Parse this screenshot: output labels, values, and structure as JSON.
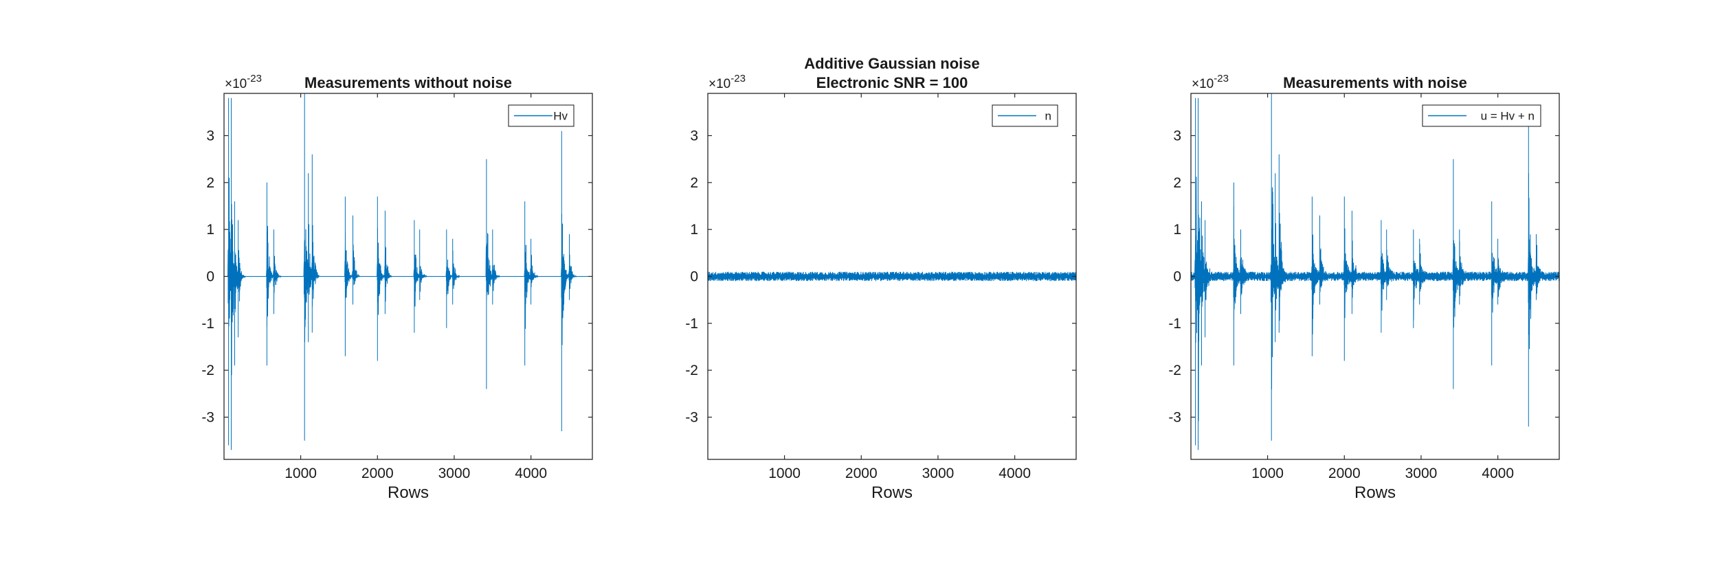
{
  "figure": {
    "background": "#ffffff",
    "series_color": "#0072BD",
    "axes_color": "#262626",
    "exponent_base": "×10",
    "exponent_power": "-23"
  },
  "chart_data": [
    {
      "type": "line",
      "title": "Measurements without noise",
      "xlabel": "Rows",
      "ylabel": "",
      "xlim": [
        1,
        4800
      ],
      "ylim": [
        -3.9,
        3.9
      ],
      "xticks": [
        1000,
        2000,
        3000,
        4000
      ],
      "xtick_labels": [
        "1000",
        "2000",
        "3000",
        "4000"
      ],
      "yticks": [
        -3,
        -2,
        -1,
        0,
        1,
        2,
        3
      ],
      "ytick_labels": [
        "-3",
        "-2",
        "-1",
        "0",
        "1",
        "2",
        "3"
      ],
      "y_scale_exponent": -23,
      "grid": false,
      "legend_position": "top-right",
      "noise_floor": 0,
      "bursts": [
        {
          "x": 60,
          "up": 3.8,
          "down": -3.6
        },
        {
          "x": 95,
          "up": 3.8,
          "down": -3.7
        },
        {
          "x": 140,
          "up": 1.6,
          "down": -1.9
        },
        {
          "x": 185,
          "up": 1.2,
          "down": -1.3
        },
        {
          "x": 560,
          "up": 2.0,
          "down": -1.9
        },
        {
          "x": 650,
          "up": 1.0,
          "down": -0.8
        },
        {
          "x": 1050,
          "up": 3.9,
          "down": -3.5
        },
        {
          "x": 1100,
          "up": 2.2,
          "down": -1.4
        },
        {
          "x": 1150,
          "up": 2.6,
          "down": -1.2
        },
        {
          "x": 1580,
          "up": 1.7,
          "down": -1.7
        },
        {
          "x": 1680,
          "up": 1.3,
          "down": -0.6
        },
        {
          "x": 2000,
          "up": 1.7,
          "down": -1.8
        },
        {
          "x": 2100,
          "up": 1.4,
          "down": -0.8
        },
        {
          "x": 2480,
          "up": 1.2,
          "down": -1.2
        },
        {
          "x": 2550,
          "up": 1.0,
          "down": -0.5
        },
        {
          "x": 2900,
          "up": 1.0,
          "down": -1.1
        },
        {
          "x": 2980,
          "up": 0.8,
          "down": -0.6
        },
        {
          "x": 3420,
          "up": 2.5,
          "down": -2.4
        },
        {
          "x": 3500,
          "up": 1.0,
          "down": -0.6
        },
        {
          "x": 3920,
          "up": 1.6,
          "down": -1.9
        },
        {
          "x": 4000,
          "up": 0.8,
          "down": -0.6
        },
        {
          "x": 4400,
          "up": 3.1,
          "down": -3.3
        },
        {
          "x": 4500,
          "up": 0.9,
          "down": -0.5
        }
      ],
      "series": [
        {
          "name": "Hv"
        }
      ]
    },
    {
      "type": "line",
      "title": "Additive Gaussian noise\nElectronic SNR = 100",
      "xlabel": "Rows",
      "ylabel": "",
      "xlim": [
        1,
        4800
      ],
      "ylim": [
        -3.9,
        3.9
      ],
      "xticks": [
        1000,
        2000,
        3000,
        4000
      ],
      "xtick_labels": [
        "1000",
        "2000",
        "3000",
        "4000"
      ],
      "yticks": [
        -3,
        -2,
        -1,
        0,
        1,
        2,
        3
      ],
      "ytick_labels": [
        "-3",
        "-2",
        "-1",
        "0",
        "1",
        "2",
        "3"
      ],
      "y_scale_exponent": -23,
      "grid": false,
      "legend_position": "top-right",
      "noise_floor": 0.1,
      "bursts": [],
      "series": [
        {
          "name": "n"
        }
      ]
    },
    {
      "type": "line",
      "title": "Measurements with noise",
      "xlabel": "Rows",
      "ylabel": "",
      "xlim": [
        1,
        4800
      ],
      "ylim": [
        -3.9,
        3.9
      ],
      "xticks": [
        1000,
        2000,
        3000,
        4000
      ],
      "xtick_labels": [
        "1000",
        "2000",
        "3000",
        "4000"
      ],
      "yticks": [
        -3,
        -2,
        -1,
        0,
        1,
        2,
        3
      ],
      "ytick_labels": [
        "-3",
        "-2",
        "-1",
        "0",
        "1",
        "2",
        "3"
      ],
      "y_scale_exponent": -23,
      "grid": false,
      "legend_position": "top-right",
      "noise_floor": 0.1,
      "bursts": [
        {
          "x": 60,
          "up": 3.8,
          "down": -3.6
        },
        {
          "x": 95,
          "up": 3.8,
          "down": -3.7
        },
        {
          "x": 140,
          "up": 1.6,
          "down": -1.9
        },
        {
          "x": 185,
          "up": 1.2,
          "down": -1.3
        },
        {
          "x": 560,
          "up": 2.0,
          "down": -1.9
        },
        {
          "x": 650,
          "up": 1.0,
          "down": -0.8
        },
        {
          "x": 1050,
          "up": 3.9,
          "down": -3.5
        },
        {
          "x": 1100,
          "up": 2.2,
          "down": -1.4
        },
        {
          "x": 1150,
          "up": 2.6,
          "down": -1.2
        },
        {
          "x": 1580,
          "up": 1.7,
          "down": -1.7
        },
        {
          "x": 1680,
          "up": 1.3,
          "down": -0.6
        },
        {
          "x": 2000,
          "up": 1.7,
          "down": -1.8
        },
        {
          "x": 2100,
          "up": 1.4,
          "down": -0.8
        },
        {
          "x": 2480,
          "up": 1.2,
          "down": -1.2
        },
        {
          "x": 2550,
          "up": 1.0,
          "down": -0.5
        },
        {
          "x": 2900,
          "up": 1.0,
          "down": -1.1
        },
        {
          "x": 2980,
          "up": 0.8,
          "down": -0.6
        },
        {
          "x": 3420,
          "up": 2.5,
          "down": -2.4
        },
        {
          "x": 3500,
          "up": 1.0,
          "down": -0.6
        },
        {
          "x": 3920,
          "up": 1.6,
          "down": -1.9
        },
        {
          "x": 4000,
          "up": 0.8,
          "down": -0.6
        },
        {
          "x": 4400,
          "up": 3.2,
          "down": -3.2
        },
        {
          "x": 4500,
          "up": 0.9,
          "down": -0.5
        }
      ],
      "series": [
        {
          "name": "u = Hv + n"
        }
      ]
    }
  ]
}
